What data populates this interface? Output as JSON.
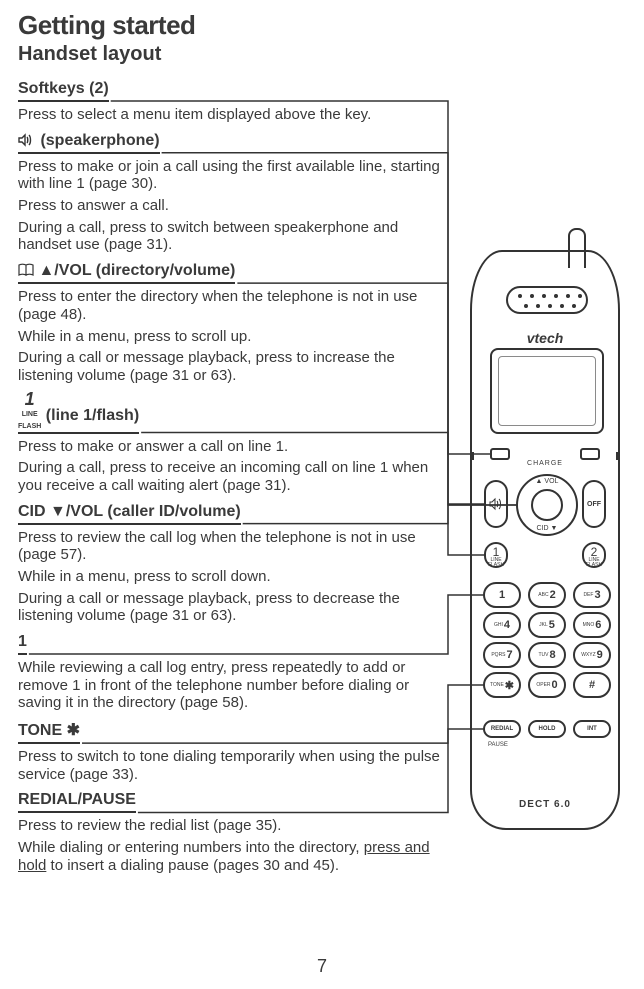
{
  "heading": "Getting started",
  "subheading": "Handset layout",
  "page_number": "7",
  "sections": [
    {
      "id": "softkeys",
      "head": "Softkeys (2)",
      "paras": [
        "Press to select a menu item displayed above the key."
      ]
    },
    {
      "id": "speaker",
      "head_prefix_icon": "speaker",
      "head": "(speakerphone)",
      "paras": [
        "Press to make or join a call using the first available line, starting with line 1 (page 30).",
        "Press to answer a call.",
        "During a call, press to switch between speakerphone and handset use (page 31)."
      ]
    },
    {
      "id": "dirvol",
      "head_prefix_icon": "book",
      "head": "▲/VOL (directory/volume)",
      "paras": [
        "Press to enter the directory when the telephone is not in use (page 48).",
        "While in a menu, press to scroll up.",
        "During a call or message playback, press to increase the listening volume (page 31 or 63)."
      ]
    },
    {
      "id": "line1",
      "head_prefix_icon": "line1",
      "head": "(line 1/flash)",
      "paras": [
        "Press to make or answer a call on line 1.",
        "During a call, press to receive an incoming call on line 1 when you receive a call waiting alert (page 31)."
      ]
    },
    {
      "id": "cidvol",
      "head": "CID ▼/VOL (caller ID/volume)",
      "paras": [
        "Press to review the call log when the telephone is not in use (page 57).",
        "While in a menu, press to scroll down.",
        "During a call or message playback, press to decrease the listening volume (page 31 or 63)."
      ]
    },
    {
      "id": "key1",
      "head": "1",
      "paras": [
        "While reviewing a call log entry, press repeatedly to add or remove 1 in front of the telephone number before dialing or saving it in the directory (page 58)."
      ]
    },
    {
      "id": "tonestar",
      "head": "TONE ✱",
      "paras": [
        "Press to switch to tone dialing temporarily when using the pulse service (page 33)."
      ]
    },
    {
      "id": "redial",
      "head": "REDIAL/PAUSE",
      "paras": [
        "Press to review the redial list (page 35).",
        "While dialing or entering numbers into the directory, press and hold to insert a dialing pause (pages 30 and 45)."
      ]
    }
  ],
  "phone": {
    "brand": "vtech",
    "charge_label": "CHARGE",
    "dpad_up": "▲ VOL",
    "dpad_dn": "CID ▼",
    "off": "OFF",
    "line1_num": "1",
    "line1_lbl": "LINE\nFLASH",
    "line2_num": "2",
    "line2_lbl": "LINE\nFLASH",
    "keys": [
      [
        {
          "n": "1",
          "s": ""
        },
        {
          "n": "2",
          "s": "ABC"
        },
        {
          "n": "3",
          "s": "DEF"
        }
      ],
      [
        {
          "n": "4",
          "s": "GHI"
        },
        {
          "n": "5",
          "s": "JKL"
        },
        {
          "n": "6",
          "s": "MNO"
        }
      ],
      [
        {
          "n": "7",
          "s": "PQRS"
        },
        {
          "n": "8",
          "s": "TUV"
        },
        {
          "n": "9",
          "s": "WXYZ"
        }
      ],
      [
        {
          "n": "✱",
          "s": "TONE"
        },
        {
          "n": "0",
          "s": "OPER"
        },
        {
          "n": "#",
          "s": ""
        }
      ]
    ],
    "bottom": [
      "REDIAL",
      "HOLD",
      "INT"
    ],
    "pause": "PAUSE",
    "dect": "DECT 6.0"
  },
  "leaders": [
    {
      "from": "softkeys",
      "to": "skey-l"
    },
    {
      "from": "speaker",
      "to": "spk-btn"
    },
    {
      "from": "dirvol",
      "to": "dpad"
    },
    {
      "from": "line1",
      "to": "line1-btn"
    },
    {
      "from": "cidvol",
      "to": "dpad"
    },
    {
      "from": "key1",
      "to": "key-1"
    },
    {
      "from": "tonestar",
      "to": "key-star"
    },
    {
      "from": "redial",
      "to": "redial-btn"
    }
  ]
}
